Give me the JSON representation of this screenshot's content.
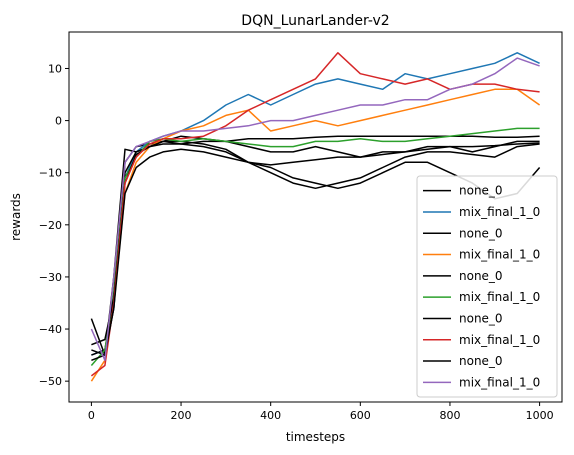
{
  "chart_data": {
    "type": "line",
    "title": "DQN_LunarLander-v2",
    "xlabel": "timesteps",
    "ylabel": "rewards",
    "xlim": [
      -50,
      1050
    ],
    "ylim": [
      -54,
      17
    ],
    "xticks": [
      0,
      200,
      400,
      600,
      800,
      1000
    ],
    "yticks": [
      -50,
      -40,
      -30,
      -20,
      -10,
      0,
      10
    ],
    "grid": false,
    "legend_position": "lower-right",
    "x": [
      0,
      30,
      50,
      75,
      100,
      130,
      160,
      200,
      250,
      300,
      350,
      400,
      450,
      500,
      550,
      600,
      650,
      700,
      750,
      800,
      850,
      900,
      950,
      1000
    ],
    "series": [
      {
        "name": "none_0",
        "color": "#000000",
        "values": [
          -44,
          -45,
          -36,
          -8,
          -5,
          -4.5,
          -4,
          -4.5,
          -4,
          -4,
          -3.5,
          -3.5,
          -3.5,
          -3.2,
          -3,
          -3,
          -3,
          -3,
          -3,
          -3,
          -3,
          -3.2,
          -3.2,
          -3
        ]
      },
      {
        "name": "mix_final_1_0",
        "color": "#1f77b4",
        "values": [
          -45,
          -44,
          -36,
          -11,
          -6,
          -4,
          -3,
          -2,
          0,
          3,
          5,
          3,
          5,
          7,
          8,
          7,
          6,
          9,
          8,
          9,
          10,
          11,
          13,
          11
        ]
      },
      {
        "name": "none_0",
        "color": "#000000",
        "values": [
          -38,
          -45,
          -30,
          -5.5,
          -6,
          -5,
          -4,
          -4,
          -4.5,
          -5.5,
          -8,
          -9,
          -11,
          -12,
          -13,
          -12,
          -10,
          -8,
          -8,
          -10,
          -12,
          -15,
          -14,
          -9
        ]
      },
      {
        "name": "mix_final_1_0",
        "color": "#ff7f0e",
        "values": [
          -50,
          -46,
          -35,
          -14,
          -8,
          -5,
          -3.5,
          -2,
          -1,
          1,
          2,
          -2,
          -1,
          0,
          -1,
          0,
          1,
          2,
          3,
          4,
          5,
          6,
          6,
          3
        ]
      },
      {
        "name": "none_0",
        "color": "#000000",
        "values": [
          -45,
          -44,
          -34,
          -10,
          -6,
          -5,
          -4,
          -3,
          -3.5,
          -4,
          -5,
          -6,
          -6,
          -5,
          -6,
          -7,
          -6,
          -6,
          -5,
          -5,
          -6,
          -5,
          -4,
          -4
        ]
      },
      {
        "name": "mix_final_1_0",
        "color": "#2ca02c",
        "values": [
          -47,
          -44,
          -33,
          -11,
          -7,
          -4,
          -3.5,
          -4,
          -3.5,
          -4,
          -4.5,
          -5,
          -5,
          -4,
          -4,
          -3.5,
          -4,
          -4,
          -3.5,
          -3,
          -2.5,
          -2,
          -1.5,
          -1.5
        ]
      },
      {
        "name": "none_0",
        "color": "#000000",
        "values": [
          -43,
          -42,
          -34,
          -12,
          -6.5,
          -5,
          -4.5,
          -4.5,
          -5,
          -6,
          -8,
          -10,
          -12,
          -13,
          -12,
          -11,
          -9,
          -7,
          -6,
          -6,
          -6.5,
          -7,
          -5,
          -4.5
        ]
      },
      {
        "name": "mix_final_1_0",
        "color": "#d62728",
        "values": [
          -49,
          -47,
          -35,
          -12,
          -7,
          -4.5,
          -3.5,
          -3.5,
          -3,
          -1,
          2,
          4,
          6,
          8,
          13,
          9,
          8,
          7,
          8,
          6,
          7,
          7,
          6,
          5.5
        ]
      },
      {
        "name": "none_0",
        "color": "#000000",
        "values": [
          -46,
          -45,
          -36,
          -14,
          -9,
          -7,
          -6,
          -5.5,
          -6,
          -7,
          -8,
          -8.5,
          -8,
          -7.5,
          -7,
          -7,
          -6.5,
          -6,
          -5.5,
          -5,
          -5,
          -4.8,
          -4.5,
          -4.3
        ]
      },
      {
        "name": "mix_final_1_0",
        "color": "#9467bd",
        "values": [
          -40,
          -46,
          -30,
          -8,
          -5,
          -4,
          -3,
          -2,
          -2,
          -1.5,
          -1,
          0,
          0,
          1,
          2,
          3,
          3,
          4,
          4,
          6,
          7,
          9,
          12,
          10.5
        ]
      }
    ]
  }
}
